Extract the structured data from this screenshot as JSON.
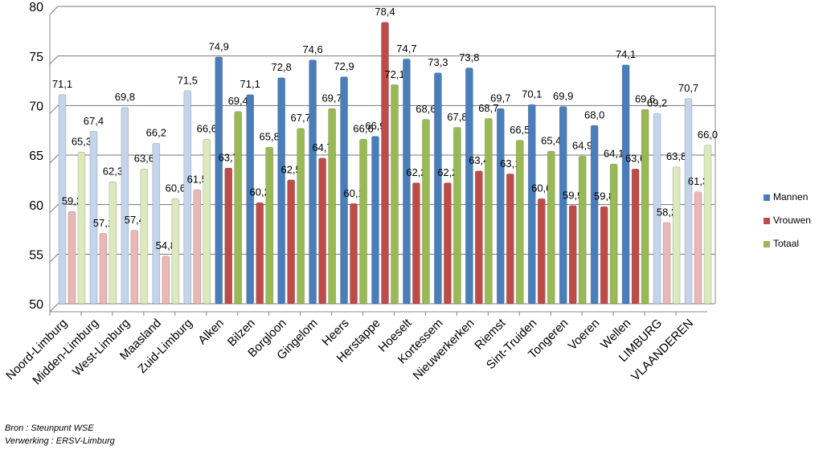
{
  "chart_data": {
    "type": "bar",
    "categories": [
      "Noord-Limburg",
      "Midden-Limburg",
      "West-Limburg",
      "Maasland",
      "Zuid-Limburg",
      "Alken",
      "Bilzen",
      "Borgloon",
      "Gingelom",
      "Heers",
      "Herstappe",
      "Hoeselt",
      "Kortessem",
      "Nieuwerkerken",
      "Riemst",
      "Sint-Truiden",
      "Tongeren",
      "Voeren",
      "Wellen",
      "LIMBURG",
      "VLAANDEREN"
    ],
    "series": [
      {
        "name": "Mannen",
        "color": "#4a7ebb",
        "colors": [
          "#c3d4ec",
          "#c3d4ec",
          "#c3d4ec",
          "#c3d4ec",
          "#c3d4ec",
          "#4a7ebb",
          "#4a7ebb",
          "#4a7ebb",
          "#4a7ebb",
          "#4a7ebb",
          "#4a7ebb",
          "#4a7ebb",
          "#4a7ebb",
          "#4a7ebb",
          "#4a7ebb",
          "#4a7ebb",
          "#4a7ebb",
          "#4a7ebb",
          "#4a7ebb",
          "#c3d4ec",
          "#c3d4ec"
        ],
        "values": [
          71.1,
          67.4,
          69.8,
          66.2,
          71.5,
          74.9,
          71.1,
          72.8,
          74.6,
          72.9,
          66.9,
          74.7,
          73.3,
          73.8,
          69.7,
          70.1,
          69.9,
          68.0,
          74.1,
          69.2,
          70.7
        ],
        "value_labels": [
          "71,1",
          "67,4",
          "69,8",
          "66,2",
          "71,5",
          "74,9",
          "71,1",
          "72,8",
          "74,6",
          "72,9",
          "66,9",
          "74,7",
          "73,3",
          "73,8",
          "69,7",
          "70,1",
          "69,9",
          "68,0",
          "74,1",
          "69,2",
          "70,7"
        ]
      },
      {
        "name": "Vrouwen",
        "color": "#be4b48",
        "colors": [
          "#eab7b6",
          "#eab7b6",
          "#eab7b6",
          "#eab7b6",
          "#eab7b6",
          "#be4b48",
          "#be4b48",
          "#be4b48",
          "#be4b48",
          "#be4b48",
          "#be4b48",
          "#be4b48",
          "#be4b48",
          "#be4b48",
          "#be4b48",
          "#be4b48",
          "#be4b48",
          "#be4b48",
          "#be4b48",
          "#eab7b6",
          "#eab7b6"
        ],
        "values": [
          59.3,
          57.1,
          57.4,
          54.8,
          61.5,
          63.7,
          60.2,
          62.5,
          64.7,
          60.1,
          78.4,
          62.2,
          62.2,
          63.4,
          63.1,
          60.6,
          59.9,
          59.8,
          63.6,
          58.2,
          61.3
        ],
        "value_labels": [
          "59,3",
          "57,1",
          "57,4",
          "54,8",
          "61,5",
          "63,7",
          "60,2",
          "62,5",
          "64,7",
          "60,1",
          "78,4",
          "62,2",
          "62,2",
          "63,4",
          "63,1",
          "60,6",
          "59,9",
          "59,8",
          "63,6",
          "58,2",
          "61,3"
        ]
      },
      {
        "name": "Totaal",
        "color": "#98b954",
        "colors": [
          "#dbe9bd",
          "#dbe9bd",
          "#dbe9bd",
          "#dbe9bd",
          "#dbe9bd",
          "#98b954",
          "#98b954",
          "#98b954",
          "#98b954",
          "#98b954",
          "#98b954",
          "#98b954",
          "#98b954",
          "#98b954",
          "#98b954",
          "#98b954",
          "#98b954",
          "#98b954",
          "#98b954",
          "#dbe9bd",
          "#dbe9bd"
        ],
        "values": [
          65.3,
          62.3,
          63.6,
          60.6,
          66.6,
          69.4,
          65.8,
          67.7,
          69.7,
          66.6,
          72.1,
          68.6,
          67.8,
          68.7,
          66.5,
          65.4,
          64.9,
          64.1,
          69.6,
          63.8,
          66.0
        ],
        "value_labels": [
          "65,3",
          "62,3",
          "63,6",
          "60,6",
          "66,6",
          "69,4",
          "65,8",
          "67,7",
          "69,7",
          "66,6",
          "72,1",
          "68,6",
          "67,8",
          "68,7",
          "66,5",
          "65,4",
          "64,9",
          "64,1",
          "69,6",
          "63,8",
          "66,0"
        ]
      }
    ],
    "ylim": [
      50,
      80
    ],
    "yticks": [
      50,
      55,
      60,
      65,
      70,
      75,
      80
    ],
    "grid": true,
    "legend": "right",
    "source": "Bron : Steunpunt WSE",
    "processing": "Verwerking : ERSV-Limburg"
  }
}
